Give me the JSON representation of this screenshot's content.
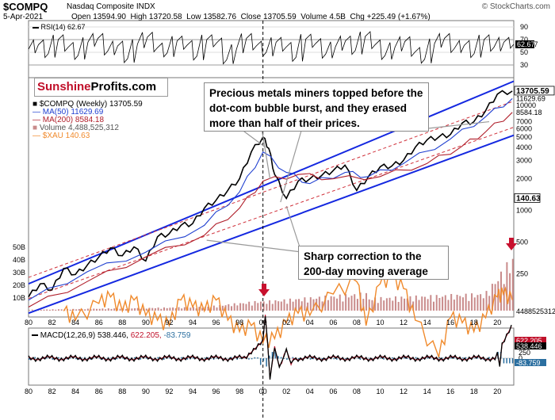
{
  "header": {
    "symbol": "$COMPQ",
    "name": "Nasdaq Composite INDX",
    "date": "5-Apr-2021",
    "open_label": "Open",
    "open": "13594.90",
    "high_label": "High",
    "high": "13720.58",
    "low_label": "Low",
    "low": "13582.76",
    "close_label": "Close",
    "close": "13705.59",
    "volume_label": "Volume",
    "volume": "4.5B",
    "chg_label": "Chg",
    "chg": "+225.49 (+1.67%)",
    "credit": "© StockCharts.com"
  },
  "brand": {
    "part1": "Sunshine",
    "part2": "Profits.com"
  },
  "legend": {
    "main": "$COMPQ (Weekly) 13705.59",
    "ma50": "MA(50) 11629.69",
    "ma200": "MA(200) 8584.18",
    "volume": "Volume 4,488,525,312",
    "xau": "$XAU 140.63",
    "rsi": "RSI(14) 62.67",
    "macd_label": "MACD(12,26,9)",
    "macd_v1": "538.446,",
    "macd_v2": "622.205,",
    "macd_v3": "-83.759"
  },
  "annotations": {
    "callout1": "Precious metals miners topped before the dot-com bubble burst, and they erased more than half of their prices.",
    "callout2": "Sharp correction to the 200-day moving average"
  },
  "colors": {
    "price": "#000000",
    "ma50": "#1f3fd0",
    "ma200": "#b01e2a",
    "xau": "#f08a2c",
    "volume": "#c98b8b",
    "channel": "#1428e0",
    "channel_dash": "#d0303a",
    "brand_red": "#c0102a",
    "arrow": "#c8102e",
    "macd": "#000000",
    "signal": "#c0102a",
    "hist": "#2b6fa0"
  },
  "chart_data": [
    {
      "type": "line",
      "title": "RSI(14) 62.67",
      "yticks": [
        30,
        50,
        62.67,
        70,
        90
      ],
      "ylim": [
        10,
        100
      ],
      "values": [
        55,
        62,
        48,
        70,
        58,
        45,
        66,
        72,
        52,
        60,
        40,
        63,
        74,
        57,
        49,
        68,
        61,
        44,
        70,
        65,
        38,
        55,
        72,
        60,
        50,
        66,
        58,
        42,
        71,
        64,
        47,
        59,
        68,
        53,
        75,
        62,
        45,
        58,
        67,
        50,
        39,
        64,
        72,
        56,
        61,
        48,
        70,
        58,
        66,
        62.67
      ]
    },
    {
      "type": "line",
      "title": "",
      "x_ticks": [
        "80",
        "82",
        "84",
        "86",
        "88",
        "90",
        "92",
        "94",
        "96",
        "98",
        "00",
        "02",
        "04",
        "06",
        "08",
        "10",
        "12",
        "14",
        "16",
        "18",
        "20"
      ],
      "right_ticks": [
        "13705.59",
        "11629.69",
        "10000",
        "8584.18",
        "7000",
        "6000",
        "5000",
        "4000",
        "3000",
        "2000",
        "1000",
        "500",
        "250",
        "140.63"
      ],
      "left_ticks": [
        "50B",
        "40B",
        "30B",
        "20B",
        "10B"
      ],
      "series": [
        {
          "name": "$COMPQ (Weekly)",
          "values": [
            [
              1980,
              150
            ],
            [
              1981,
              200
            ],
            [
              1982,
              175
            ],
            [
              1983,
              280
            ],
            [
              1984,
              245
            ],
            [
              1985,
              300
            ],
            [
              1986,
              360
            ],
            [
              1987,
              440
            ],
            [
              1988,
              370
            ],
            [
              1989,
              450
            ],
            [
              1990,
              330
            ],
            [
              1991,
              560
            ],
            [
              1992,
              600
            ],
            [
              1993,
              720
            ],
            [
              1994,
              750
            ],
            [
              1995,
              1050
            ],
            [
              1996,
              1250
            ],
            [
              1997,
              1550
            ],
            [
              1998,
              2000
            ],
            [
              1999,
              3600
            ],
            [
              2000,
              5000
            ],
            [
              2000.5,
              3900
            ],
            [
              2001,
              2200
            ],
            [
              2002,
              1300
            ],
            [
              2003,
              1900
            ],
            [
              2004,
              2000
            ],
            [
              2005,
              2150
            ],
            [
              2006,
              2400
            ],
            [
              2007,
              2700
            ],
            [
              2008,
              1550
            ],
            [
              2009,
              2100
            ],
            [
              2010,
              2600
            ],
            [
              2011,
              2650
            ],
            [
              2012,
              3000
            ],
            [
              2013,
              4000
            ],
            [
              2014,
              4700
            ],
            [
              2015,
              5000
            ],
            [
              2016,
              5300
            ],
            [
              2017,
              6800
            ],
            [
              2018,
              7000
            ],
            [
              2019,
              8900
            ],
            [
              2020,
              12800
            ],
            [
              2021.27,
              13705.59
            ]
          ]
        },
        {
          "name": "MA(50)",
          "values": [
            [
              1980,
              140
            ],
            [
              1985,
              260
            ],
            [
              1990,
              400
            ],
            [
              1995,
              720
            ],
            [
              1998,
              1500
            ],
            [
              2000,
              3600
            ],
            [
              2002,
              2300
            ],
            [
              2004,
              1800
            ],
            [
              2007,
              2300
            ],
            [
              2009,
              2100
            ],
            [
              2012,
              2800
            ],
            [
              2016,
              4800
            ],
            [
              2019,
              7800
            ],
            [
              2021.27,
              11629.69
            ]
          ]
        },
        {
          "name": "MA(200)",
          "values": [
            [
              1980,
              120
            ],
            [
              1985,
              210
            ],
            [
              1990,
              360
            ],
            [
              1995,
              580
            ],
            [
              1998,
              1050
            ],
            [
              2000,
              1900
            ],
            [
              2003,
              2200
            ],
            [
              2006,
              2000
            ],
            [
              2010,
              2100
            ],
            [
              2014,
              2800
            ],
            [
              2017,
              4100
            ],
            [
              2019,
              5600
            ],
            [
              2021.27,
              8584.18
            ]
          ]
        },
        {
          "name": "$XAU",
          "values": [
            [
              1983,
              110
            ],
            [
              1984,
              90
            ],
            [
              1986,
              130
            ],
            [
              1987,
              150
            ],
            [
              1988,
              110
            ],
            [
              1989,
              140
            ],
            [
              1990,
              100
            ],
            [
              1991,
              90
            ],
            [
              1992,
              80
            ],
            [
              1993,
              140
            ],
            [
              1994,
              120
            ],
            [
              1995,
              110
            ],
            [
              1996,
              140
            ],
            [
              1997,
              90
            ],
            [
              1998,
              70
            ],
            [
              1999,
              80
            ],
            [
              2000,
              55
            ],
            [
              2001,
              60
            ],
            [
              2002,
              85
            ],
            [
              2003,
              105
            ],
            [
              2004,
              100
            ],
            [
              2006,
              160
            ],
            [
              2008,
              210
            ],
            [
              2008.8,
              80
            ],
            [
              2010,
              200
            ],
            [
              2011,
              230
            ],
            [
              2012,
              180
            ],
            [
              2013,
              90
            ],
            [
              2015,
              40
            ],
            [
              2016,
              95
            ],
            [
              2017,
              85
            ],
            [
              2018,
              70
            ],
            [
              2019,
              95
            ],
            [
              2020,
              150
            ],
            [
              2020.5,
              160
            ],
            [
              2021.27,
              140.63
            ]
          ]
        }
      ],
      "volume_note": "Volume 4,488,525,312"
    },
    {
      "type": "line",
      "title": "MACD(12,26,9) 538.446, 622.205, -83.759",
      "right_ticks": [
        "622.205",
        "538.446",
        "250",
        "0",
        "-83.759"
      ],
      "x_ticks": [
        "80",
        "82",
        "84",
        "86",
        "88",
        "90",
        "92",
        "94",
        "96",
        "98",
        "00",
        "02",
        "04",
        "06",
        "08",
        "10",
        "12",
        "14",
        "16",
        "18",
        "20"
      ]
    }
  ]
}
